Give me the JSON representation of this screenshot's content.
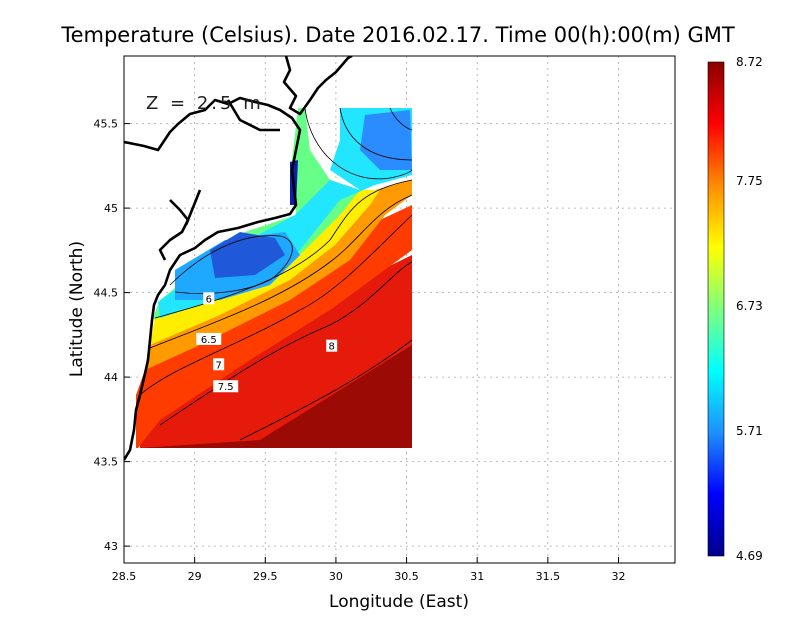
{
  "title": "Temperature (Celsius). Date 2016.02.17. Time 00(h):00(m) GMT",
  "depth_label": "Z = 2.5 m",
  "xaxis": {
    "label": "Longitude (East)",
    "ticks": [
      28.5,
      29,
      29.5,
      30,
      30.5,
      31,
      31.5,
      32
    ],
    "tick_labels": [
      "28.5",
      "29",
      "29.5",
      "30",
      "30.5",
      "31",
      "31.5",
      "32"
    ],
    "range": [
      28.5,
      32.4
    ]
  },
  "yaxis": {
    "label": "Latitude (North)",
    "ticks": [
      43,
      43.5,
      44,
      44.5,
      45,
      45.5
    ],
    "tick_labels": [
      "43",
      "43.5",
      "44",
      "44.5",
      "45",
      "45.5"
    ],
    "range": [
      42.9,
      45.9
    ]
  },
  "colorbar": {
    "min": 4.69,
    "max": 8.72,
    "tick_labels": [
      "8.72",
      "7.75",
      "6.73",
      "5.71",
      "4.69"
    ],
    "ticks": [
      8.72,
      7.75,
      6.73,
      5.71,
      4.69
    ],
    "colors": [
      "#00008b",
      "#0000ff",
      "#1e90ff",
      "#00ffff",
      "#7fff7f",
      "#ffff00",
      "#ff8c00",
      "#ff0000",
      "#8b0000"
    ]
  },
  "contour_labels": [
    {
      "text": "6",
      "lon": 29.1,
      "lat": 44.46
    },
    {
      "text": "6.5",
      "lon": 29.1,
      "lat": 44.22
    },
    {
      "text": "7",
      "lon": 29.17,
      "lat": 44.07
    },
    {
      "text": "7.5",
      "lon": 29.22,
      "lat": 43.94
    },
    {
      "text": "8",
      "lon": 29.97,
      "lat": 44.18
    }
  ],
  "colors": {
    "coast": "#000000",
    "grid": "#aaaaaa",
    "contour": "#000000"
  }
}
